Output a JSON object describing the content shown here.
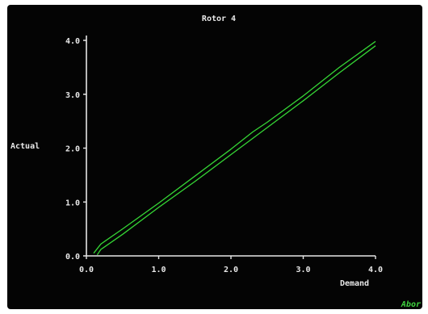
{
  "chart_data": {
    "type": "line",
    "title": "Rotor 4",
    "xlabel": "Demand",
    "ylabel": "Actual",
    "xlim": [
      0,
      4
    ],
    "ylim": [
      0,
      4
    ],
    "xticks": [
      "0.0",
      "1.0",
      "2.0",
      "3.0",
      "4.0"
    ],
    "yticks": [
      "0.0",
      "1.0",
      "2.0",
      "3.0",
      "4.0"
    ],
    "grid": false,
    "line_color": "#35d635",
    "axis_color": "#e6e6e6",
    "series": [
      {
        "x": [
          0.1,
          0.2,
          0.5,
          1.0,
          1.5,
          2.0,
          2.3,
          2.5,
          3.0,
          3.5,
          4.0
        ],
        "y": [
          0.05,
          0.22,
          0.5,
          0.98,
          1.48,
          1.98,
          2.3,
          2.48,
          2.97,
          3.5,
          3.98
        ]
      },
      {
        "x": [
          0.15,
          0.2,
          0.5,
          1.0,
          1.5,
          2.0,
          2.5,
          3.0,
          3.5,
          4.0
        ],
        "y": [
          0.02,
          0.12,
          0.4,
          0.9,
          1.38,
          1.88,
          2.38,
          2.88,
          3.4,
          3.9
        ]
      }
    ]
  },
  "status": {
    "abort_label": "Abor"
  }
}
